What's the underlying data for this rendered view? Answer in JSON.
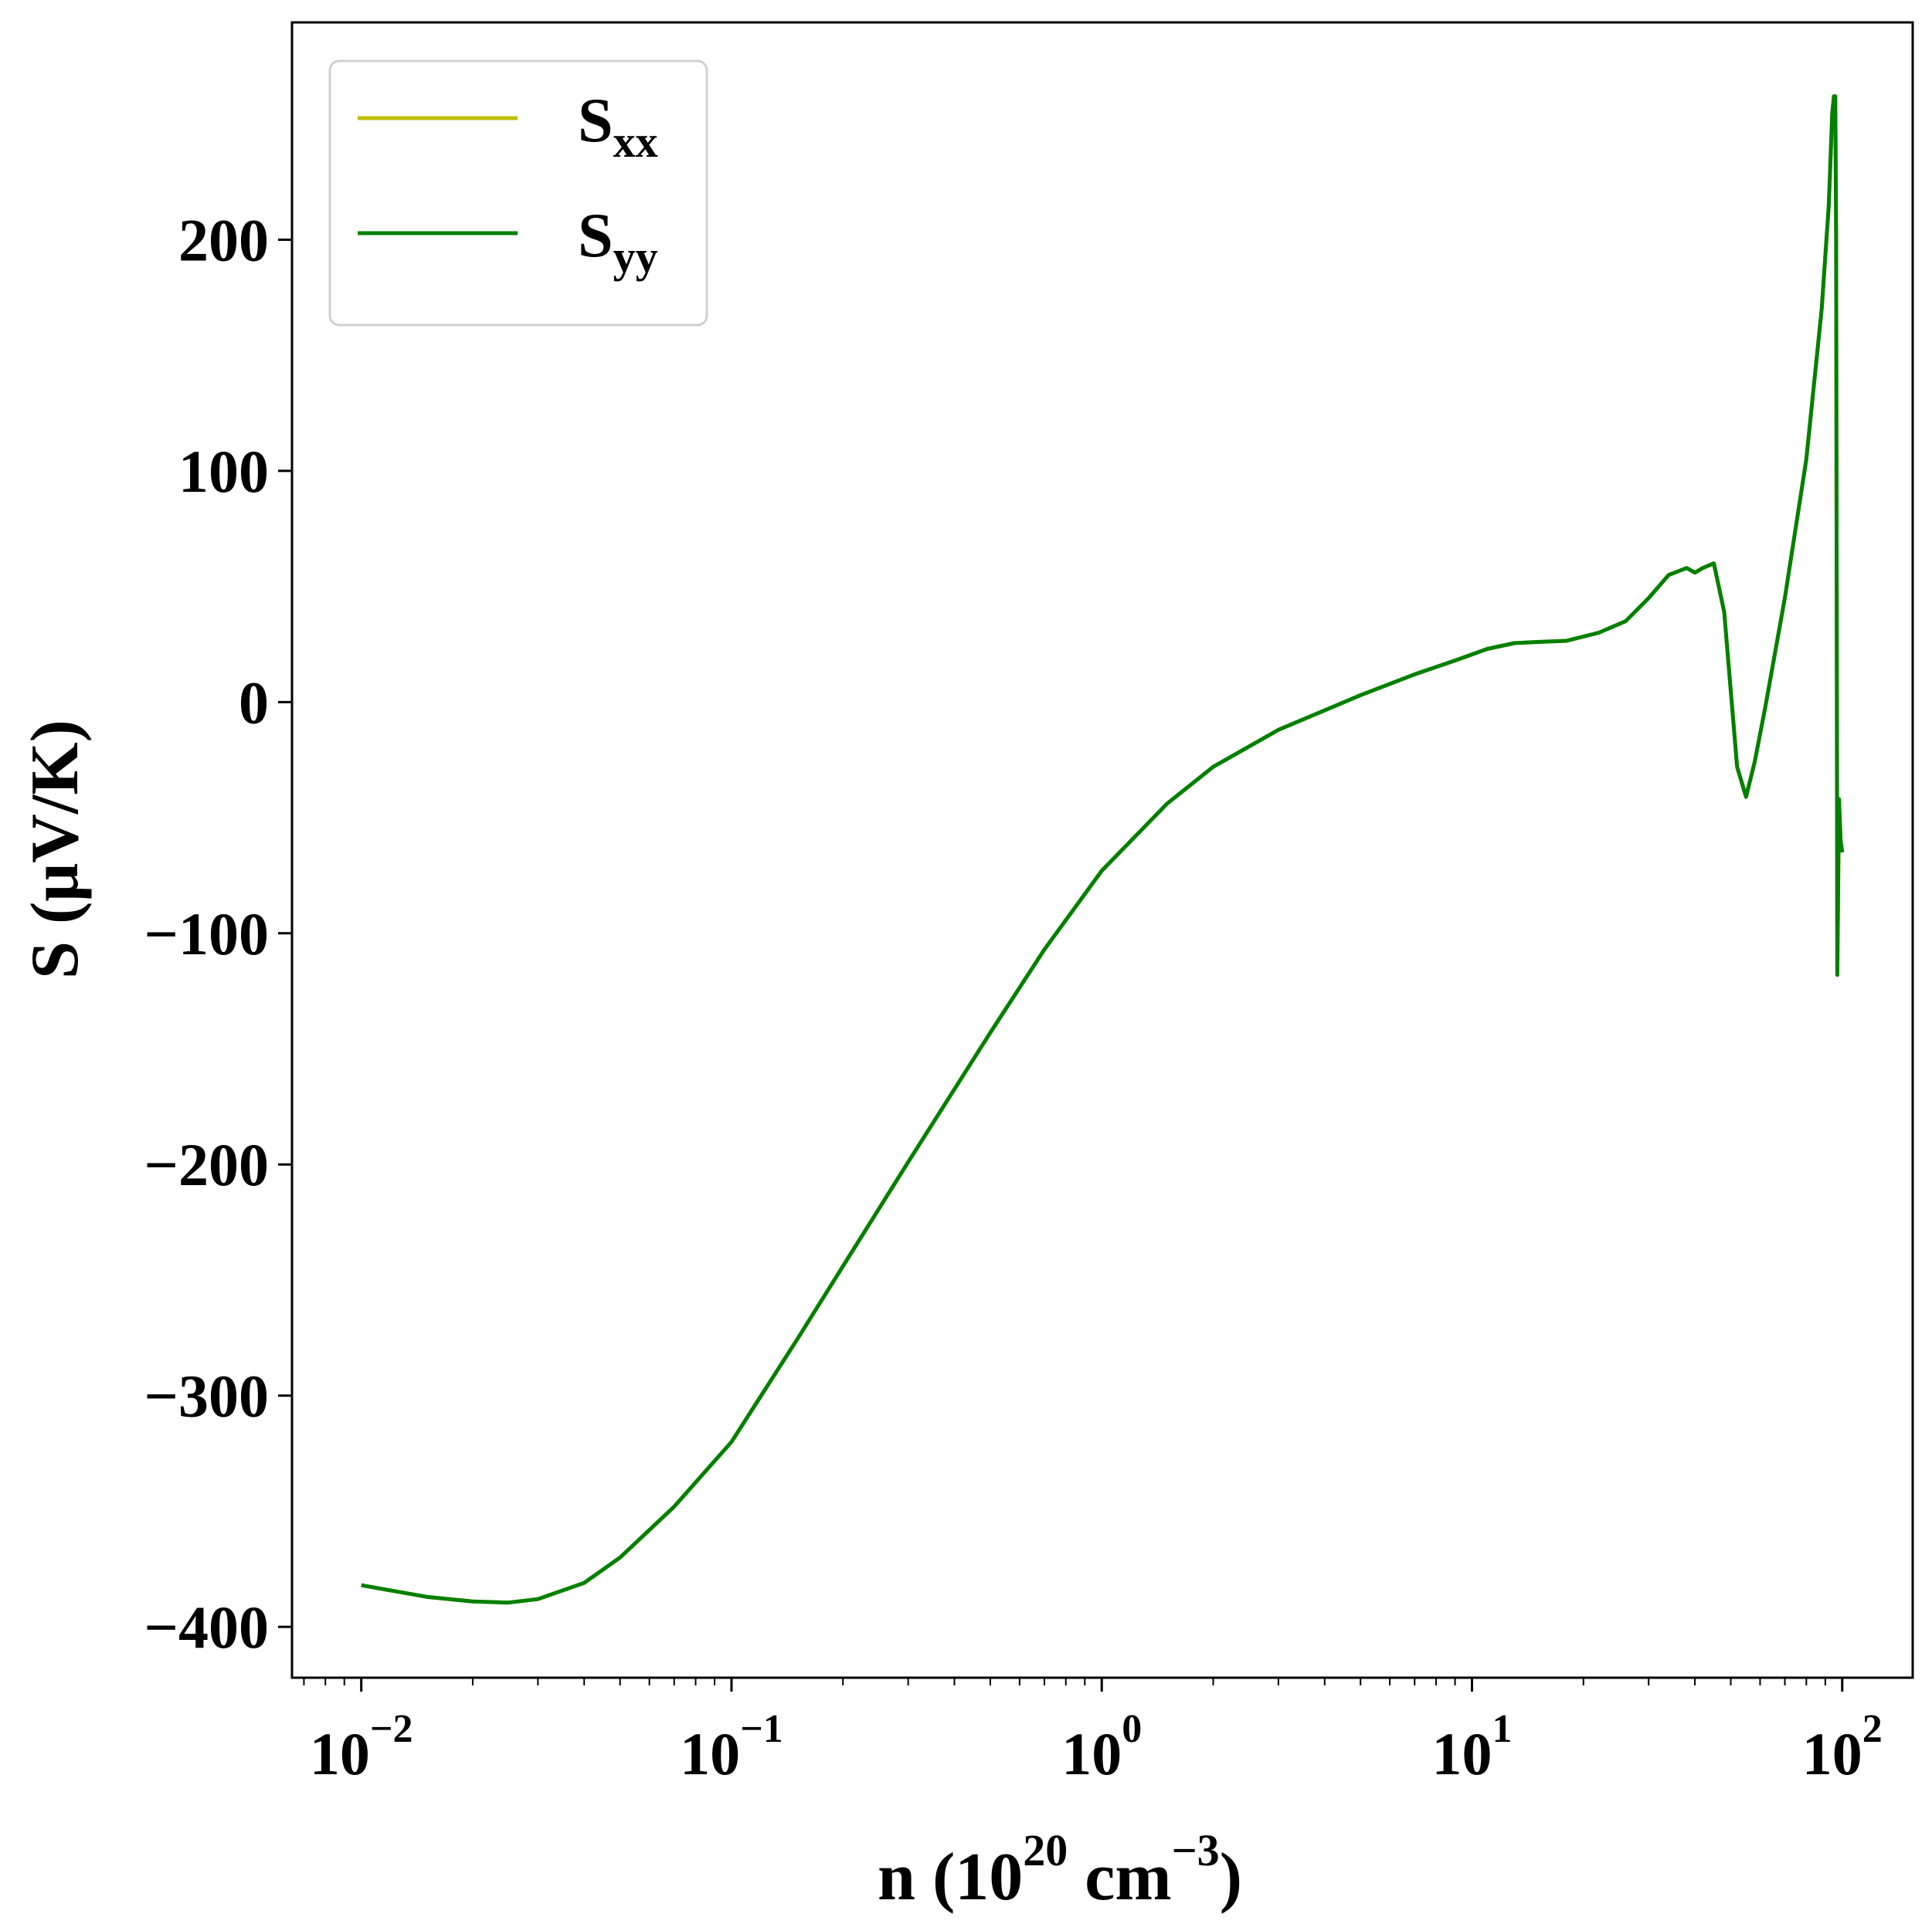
{
  "chart_data": {
    "type": "line",
    "xlabel": {
      "prefix": "n (10",
      "exp1": "20",
      "mid": " cm",
      "exp2": "−3",
      "suffix": ")"
    },
    "ylabel": "S (μV/K)",
    "x_scale": "log",
    "xlim": [
      0.0065,
      155
    ],
    "ylim": [
      -422,
      294
    ],
    "x_ticks": [
      {
        "value": 0.01,
        "base": "10",
        "exp": "−2"
      },
      {
        "value": 0.1,
        "base": "10",
        "exp": "−1"
      },
      {
        "value": 1,
        "base": "10",
        "exp": "0"
      },
      {
        "value": 10,
        "base": "10",
        "exp": "1"
      },
      {
        "value": 100,
        "base": "10",
        "exp": "2"
      }
    ],
    "y_ticks": [
      {
        "value": 200,
        "label": "200"
      },
      {
        "value": 100,
        "label": "100"
      },
      {
        "value": 0,
        "label": "0"
      },
      {
        "value": -100,
        "label": "−100"
      },
      {
        "value": -200,
        "label": "−200"
      },
      {
        "value": -300,
        "label": "−300"
      },
      {
        "value": -400,
        "label": "−400"
      }
    ],
    "grid": false,
    "legend_position": "top-left",
    "series": [
      {
        "name": "S",
        "name_sub": "xx",
        "color": "#bfbf00",
        "x": [
          0.01,
          0.015,
          0.02,
          0.025,
          0.03,
          0.04,
          0.05,
          0.07,
          0.1,
          0.15,
          0.2,
          0.3,
          0.5,
          0.7,
          1.0,
          1.5,
          2,
          3,
          5,
          7,
          9,
          11,
          13,
          15,
          18,
          22,
          26,
          30,
          34,
          38,
          40,
          42,
          45,
          48,
          52,
          55,
          58,
          62,
          70,
          80,
          88,
          92,
          94,
          95,
          95.8,
          96.3,
          97,
          98,
          99,
          100
        ],
        "y": [
          -382,
          -387,
          -389,
          -389.5,
          -388,
          -381,
          -370,
          -348,
          -320,
          -276,
          -244,
          -199,
          -143,
          -107,
          -73,
          -44,
          -28,
          -12,
          3,
          12,
          18,
          23,
          25.5,
          26,
          26.5,
          30,
          35,
          45,
          55,
          58,
          56,
          58,
          60,
          39,
          -28,
          -41,
          -26,
          -2,
          45,
          105,
          170,
          215,
          255,
          262,
          262,
          200,
          -118,
          -42,
          -60,
          -65
        ]
      },
      {
        "name": "S",
        "name_sub": "yy",
        "color": "#008000",
        "x": [
          0.01,
          0.015,
          0.02,
          0.025,
          0.03,
          0.04,
          0.05,
          0.07,
          0.1,
          0.15,
          0.2,
          0.3,
          0.5,
          0.7,
          1.0,
          1.5,
          2,
          3,
          5,
          7,
          9,
          11,
          13,
          15,
          18,
          22,
          26,
          30,
          34,
          38,
          40,
          42,
          45,
          48,
          52,
          55,
          58,
          62,
          70,
          80,
          88,
          92,
          94,
          95,
          95.8,
          96.3,
          97,
          98,
          99,
          100
        ],
        "y": [
          -382,
          -387,
          -389,
          -389.5,
          -388,
          -381,
          -370,
          -348,
          -320,
          -276,
          -244,
          -199,
          -143,
          -107,
          -73,
          -44,
          -28,
          -12,
          3,
          12,
          18,
          23,
          25.5,
          26,
          26.5,
          30,
          35,
          45,
          55,
          58,
          56,
          58,
          60,
          39,
          -28,
          -41,
          -26,
          -2,
          45,
          105,
          170,
          215,
          255,
          262,
          262,
          200,
          -118,
          -42,
          -60,
          -65
        ]
      }
    ]
  }
}
